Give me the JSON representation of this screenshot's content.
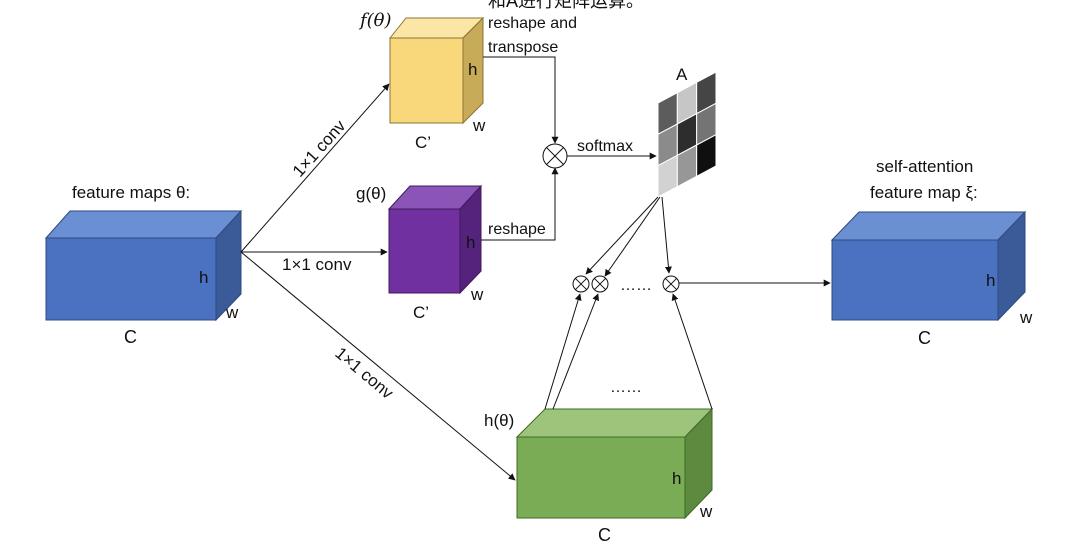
{
  "header_text": "和A进行矩阵运算。",
  "input": {
    "title": "feature maps θ:",
    "h": "h",
    "w": "w",
    "c": "C",
    "colors": {
      "front": "#4a72c1",
      "top": "#6b8fd3",
      "side": "#3b5a98"
    }
  },
  "branches": {
    "f": {
      "name": "f(θ)",
      "conv": "1×1 conv",
      "h": "h",
      "w": "w",
      "c": "C’",
      "op": "reshape and transpose",
      "op_line1": "reshape and",
      "op_line2": "transpose",
      "colors": {
        "front": "#f9d87c",
        "top": "#fbe6a6",
        "side": "#c8ab58"
      }
    },
    "g": {
      "name": "g(θ)",
      "conv": "1×1 conv",
      "h": "h",
      "w": "w",
      "c": "C’",
      "op": "reshape",
      "colors": {
        "front": "#7030a0",
        "top": "#8b55b8",
        "side": "#55237c"
      }
    },
    "h": {
      "name": "h(θ)",
      "conv": "1×1 conv",
      "h": "h",
      "w": "w",
      "c": "C",
      "colors": {
        "front": "#7aab55",
        "top": "#9cc47a",
        "side": "#5e8a3f"
      }
    }
  },
  "softmax_label": "softmax",
  "attention_matrix": {
    "label": "A",
    "cells": [
      [
        0.35,
        0.8,
        0.25
      ],
      [
        0.55,
        0.15,
        0.45
      ],
      [
        0.85,
        0.6,
        0.02
      ]
    ]
  },
  "ellipsis_row": "……",
  "ellipsis_mid": "……",
  "output": {
    "title_line1": "self-attention",
    "title_line2": "feature map ξ:",
    "h": "h",
    "w": "w",
    "c": "C",
    "colors": {
      "front": "#4a72c1",
      "top": "#6b8fd3",
      "side": "#3b5a98"
    }
  }
}
